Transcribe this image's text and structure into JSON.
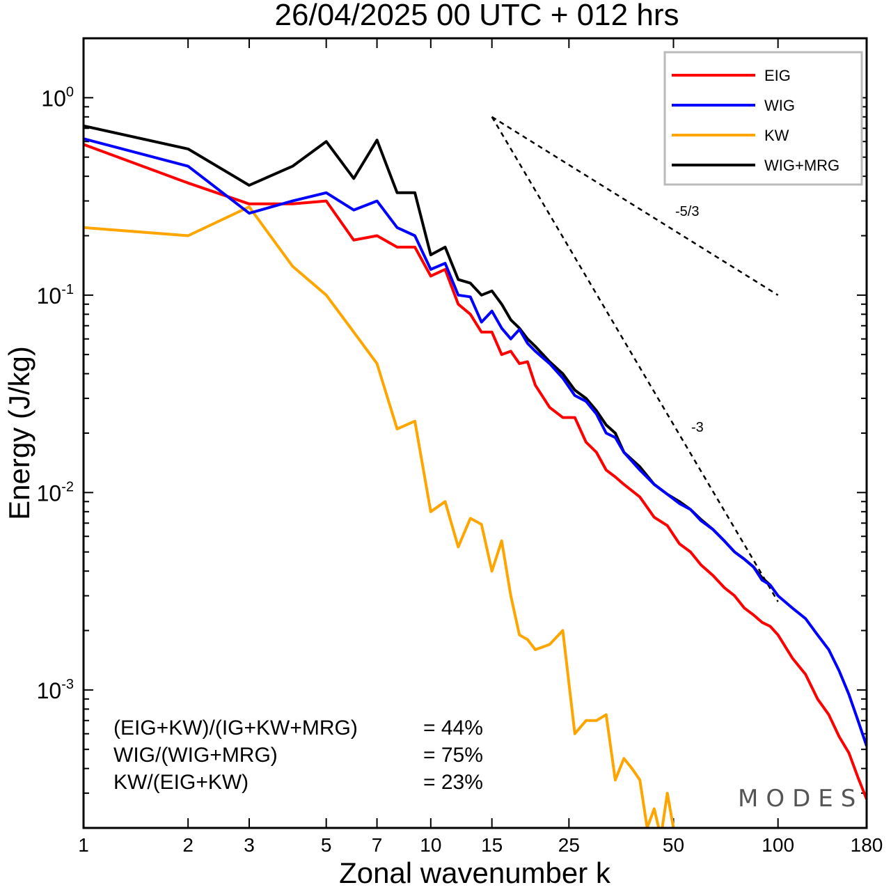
{
  "chart_data": {
    "type": "line",
    "title": "26/04/2025  00 UTC  + 012 hrs",
    "xlabel": "Zonal wavenumber k",
    "ylabel": "Energy (J/kg)",
    "xscale": "log",
    "yscale": "log",
    "xlim": [
      1,
      180
    ],
    "ylim": [
      0.0002,
      2
    ],
    "xticks": [
      1,
      2,
      3,
      5,
      7,
      10,
      15,
      25,
      50,
      100,
      180
    ],
    "xtick_labels": [
      "1",
      "2",
      "3",
      "5",
      "7",
      "10",
      "15",
      "25",
      "50",
      "100",
      "180"
    ],
    "yticks": [
      {
        "value": 1,
        "base": "10",
        "exp": "0"
      },
      {
        "value": 0.1,
        "base": "10",
        "exp": "-1"
      },
      {
        "value": 0.01,
        "base": "10",
        "exp": "-2"
      },
      {
        "value": 0.001,
        "base": "10",
        "exp": "-3"
      }
    ],
    "legend_position": "top-right",
    "series": [
      {
        "name": "EIG",
        "color": "#ff0000",
        "x": [
          1,
          2,
          3,
          4,
          5,
          6,
          7,
          8,
          9,
          10,
          11,
          12,
          13,
          14,
          15,
          16,
          17,
          18,
          19,
          20,
          22,
          24,
          26,
          28,
          30,
          32,
          34,
          36,
          40,
          44,
          48,
          52,
          56,
          60,
          65,
          70,
          75,
          80,
          85,
          90,
          95,
          100,
          110,
          120,
          130,
          140,
          150,
          160,
          170,
          180
        ],
        "y": [
          0.58,
          0.37,
          0.29,
          0.29,
          0.3,
          0.19,
          0.2,
          0.175,
          0.175,
          0.125,
          0.135,
          0.09,
          0.08,
          0.065,
          0.065,
          0.05,
          0.052,
          0.045,
          0.046,
          0.035,
          0.027,
          0.024,
          0.024,
          0.018,
          0.016,
          0.013,
          0.012,
          0.011,
          0.0095,
          0.0075,
          0.0068,
          0.0055,
          0.005,
          0.0043,
          0.0038,
          0.0033,
          0.003,
          0.0026,
          0.0024,
          0.0022,
          0.0021,
          0.0019,
          0.00145,
          0.0012,
          0.0009,
          0.00075,
          0.00058,
          0.00048,
          0.00036,
          0.00028
        ]
      },
      {
        "name": "WIG",
        "color": "#0000ff",
        "x": [
          1,
          2,
          3,
          4,
          5,
          6,
          7,
          8,
          9,
          10,
          11,
          12,
          13,
          14,
          15,
          16,
          17,
          18,
          19,
          20,
          22,
          24,
          26,
          28,
          30,
          32,
          34,
          36,
          40,
          44,
          48,
          52,
          56,
          60,
          65,
          70,
          75,
          80,
          85,
          90,
          95,
          100,
          110,
          120,
          130,
          140,
          150,
          160,
          170,
          180
        ],
        "y": [
          0.62,
          0.45,
          0.26,
          0.3,
          0.33,
          0.27,
          0.3,
          0.22,
          0.2,
          0.135,
          0.145,
          0.1,
          0.098,
          0.073,
          0.083,
          0.068,
          0.06,
          0.067,
          0.057,
          0.052,
          0.045,
          0.038,
          0.031,
          0.029,
          0.025,
          0.02,
          0.019,
          0.016,
          0.013,
          0.011,
          0.0098,
          0.0088,
          0.0082,
          0.0072,
          0.0065,
          0.0057,
          0.005,
          0.0046,
          0.0042,
          0.0036,
          0.0034,
          0.003,
          0.0026,
          0.0023,
          0.0019,
          0.0016,
          0.00125,
          0.00095,
          0.0007,
          0.00052
        ]
      },
      {
        "name": "KW",
        "color": "#ffa500",
        "x": [
          1,
          2,
          3,
          4,
          5,
          6,
          7,
          8,
          9,
          10,
          11,
          12,
          13,
          14,
          15,
          16,
          17,
          18,
          19,
          20,
          22,
          24,
          26,
          28,
          30,
          32,
          34,
          36,
          38,
          40,
          42,
          44,
          46,
          48,
          50
        ],
        "y": [
          0.22,
          0.2,
          0.28,
          0.14,
          0.1,
          0.065,
          0.045,
          0.021,
          0.023,
          0.008,
          0.009,
          0.0053,
          0.0074,
          0.0069,
          0.004,
          0.0057,
          0.003,
          0.0019,
          0.0018,
          0.0016,
          0.0017,
          0.002,
          0.0006,
          0.0007,
          0.0007,
          0.00075,
          0.00035,
          0.00045,
          0.0004,
          0.00035,
          0.0002,
          0.00025,
          0.00018,
          0.0003,
          0.0002
        ]
      },
      {
        "name": "WIG+MRG",
        "color": "#000000",
        "x": [
          1,
          2,
          3,
          4,
          5,
          6,
          7,
          8,
          9,
          10,
          11,
          12,
          13,
          14,
          15,
          16,
          17,
          18,
          19,
          20,
          22,
          24,
          26,
          28,
          30,
          32,
          34,
          36,
          40,
          44,
          48,
          52,
          56,
          60,
          65,
          70,
          75,
          80,
          85,
          90,
          95
        ],
        "y": [
          0.72,
          0.55,
          0.36,
          0.45,
          0.6,
          0.39,
          0.61,
          0.33,
          0.33,
          0.16,
          0.175,
          0.12,
          0.115,
          0.1,
          0.105,
          0.09,
          0.075,
          0.068,
          0.06,
          0.055,
          0.046,
          0.04,
          0.033,
          0.03,
          0.026,
          0.022,
          0.02,
          0.016,
          0.0135,
          0.011,
          0.0098,
          0.009,
          0.0082,
          0.0073,
          0.0065,
          0.0057,
          0.005,
          0.0046,
          0.0042,
          0.0037,
          0.0034
        ]
      }
    ],
    "reference_lines": [
      {
        "label": "-5/3",
        "x": [
          15,
          100
        ],
        "y": [
          0.8,
          0.1
        ]
      },
      {
        "label": "-3",
        "x": [
          15,
          100
        ],
        "y": [
          0.8,
          0.0028
        ]
      }
    ],
    "stats": [
      {
        "label": "(EIG+KW)/(IG+KW+MRG)",
        "value": "= 44%"
      },
      {
        "label": "WIG/(WIG+MRG)",
        "value": "= 75%"
      },
      {
        "label": "KW/(EIG+KW)",
        "value": "= 23%"
      }
    ],
    "logo": "MODES"
  }
}
